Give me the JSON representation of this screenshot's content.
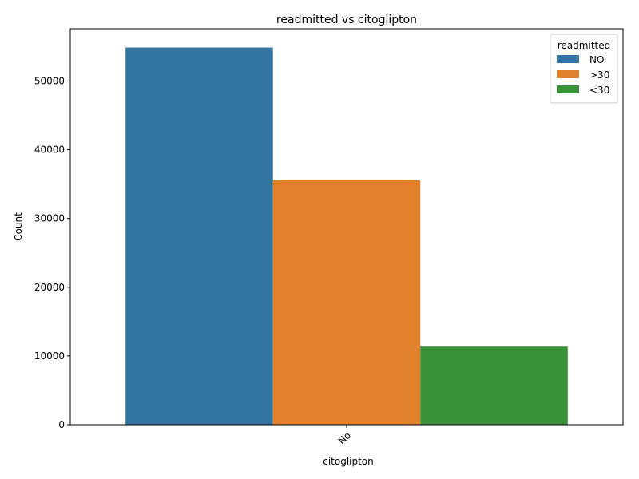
{
  "chart_data": {
    "type": "bar",
    "title": "readmitted vs citoglipton",
    "xlabel": "citoglipton",
    "ylabel": "Count",
    "categories": [
      "No"
    ],
    "series": [
      {
        "name": "NO",
        "values": [
          54864
        ],
        "color": "#3274a1"
      },
      {
        "name": ">30",
        "values": [
          35545
        ],
        "color": "#e1812c"
      },
      {
        "name": "<30",
        "values": [
          11357
        ],
        "color": "#3a923a"
      }
    ],
    "ylim": [
      0,
      57600
    ],
    "yticks": [
      0,
      10000,
      20000,
      30000,
      40000,
      50000
    ],
    "ytick_labels": [
      "0",
      "10000",
      "20000",
      "30000",
      "40000",
      "50000"
    ],
    "legend": {
      "title": "readmitted",
      "position": "top-right"
    },
    "grid": false
  }
}
